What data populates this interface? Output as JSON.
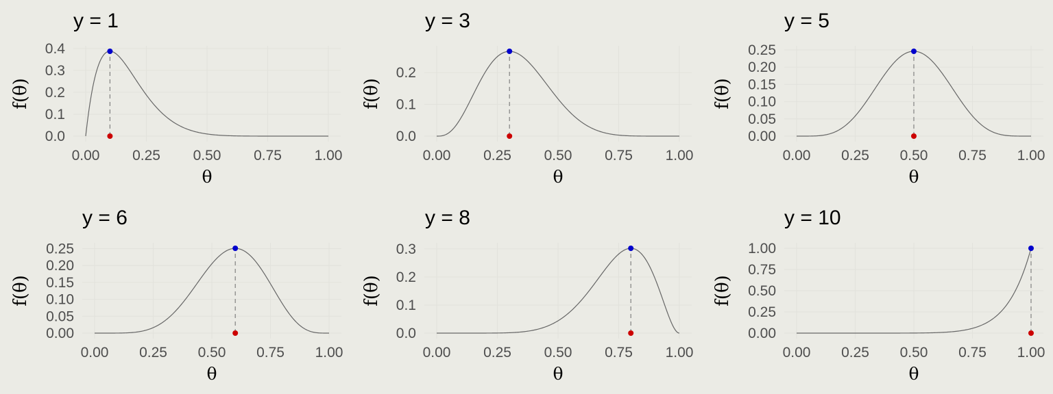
{
  "chart_data": [
    {
      "type": "line",
      "title": "y = 1",
      "xlabel": "θ",
      "ylabel": "f(θ)",
      "xlim": [
        0,
        1
      ],
      "ylim": [
        0,
        0.387
      ],
      "x_ticks": [
        "0.00",
        "0.25",
        "0.50",
        "0.75",
        "1.00"
      ],
      "y_ticks": [
        0,
        0.1,
        0.2,
        0.3,
        0.4
      ],
      "y_tick_labels": [
        "0.0",
        "0.1",
        "0.2",
        "0.3",
        "0.4"
      ],
      "curve": {
        "n": 10,
        "k": 1
      },
      "mode_point": {
        "x": 0.1,
        "y": 0.387
      },
      "base_point": {
        "x": 0.1,
        "y": 0
      },
      "grid": true
    },
    {
      "type": "line",
      "title": "y = 3",
      "xlabel": "θ",
      "ylabel": "f(θ)",
      "xlim": [
        0,
        1
      ],
      "ylim": [
        0,
        0.267
      ],
      "x_ticks": [
        "0.00",
        "0.25",
        "0.50",
        "0.75",
        "1.00"
      ],
      "y_ticks": [
        0,
        0.1,
        0.2
      ],
      "y_tick_labels": [
        "0.0",
        "0.1",
        "0.2"
      ],
      "curve": {
        "n": 10,
        "k": 3
      },
      "mode_point": {
        "x": 0.3,
        "y": 0.267
      },
      "base_point": {
        "x": 0.3,
        "y": 0
      },
      "grid": true
    },
    {
      "type": "line",
      "title": "y = 5",
      "xlabel": "θ",
      "ylabel": "f(θ)",
      "xlim": [
        0,
        1
      ],
      "ylim": [
        0,
        0.246
      ],
      "x_ticks": [
        "0.00",
        "0.25",
        "0.50",
        "0.75",
        "1.00"
      ],
      "y_ticks": [
        0,
        0.05,
        0.1,
        0.15,
        0.2,
        0.25
      ],
      "y_tick_labels": [
        "0.00",
        "0.05",
        "0.10",
        "0.15",
        "0.20",
        "0.25"
      ],
      "curve": {
        "n": 10,
        "k": 5
      },
      "mode_point": {
        "x": 0.5,
        "y": 0.246
      },
      "base_point": {
        "x": 0.5,
        "y": 0
      },
      "grid": true
    },
    {
      "type": "line",
      "title": "y = 6",
      "xlabel": "θ",
      "ylabel": "f(θ)",
      "xlim": [
        0,
        1
      ],
      "ylim": [
        0,
        0.251
      ],
      "x_ticks": [
        "0.00",
        "0.25",
        "0.50",
        "0.75",
        "1.00"
      ],
      "y_ticks": [
        0,
        0.05,
        0.1,
        0.15,
        0.2,
        0.25
      ],
      "y_tick_labels": [
        "0.00",
        "0.05",
        "0.10",
        "0.15",
        "0.20",
        "0.25"
      ],
      "curve": {
        "n": 10,
        "k": 6
      },
      "mode_point": {
        "x": 0.6,
        "y": 0.251
      },
      "base_point": {
        "x": 0.6,
        "y": 0
      },
      "grid": true
    },
    {
      "type": "line",
      "title": "y = 8",
      "xlabel": "θ",
      "ylabel": "f(θ)",
      "xlim": [
        0,
        1
      ],
      "ylim": [
        0,
        0.302
      ],
      "x_ticks": [
        "0.00",
        "0.25",
        "0.50",
        "0.75",
        "1.00"
      ],
      "y_ticks": [
        0,
        0.1,
        0.2,
        0.3
      ],
      "y_tick_labels": [
        "0.0",
        "0.1",
        "0.2",
        "0.3"
      ],
      "curve": {
        "n": 10,
        "k": 8
      },
      "mode_point": {
        "x": 0.8,
        "y": 0.302
      },
      "base_point": {
        "x": 0.8,
        "y": 0
      },
      "grid": true
    },
    {
      "type": "line",
      "title": "y = 10",
      "xlabel": "θ",
      "ylabel": "f(θ)",
      "xlim": [
        0,
        1
      ],
      "ylim": [
        0,
        1
      ],
      "x_ticks": [
        "0.00",
        "0.25",
        "0.50",
        "0.75",
        "1.00"
      ],
      "y_ticks": [
        0,
        0.25,
        0.5,
        0.75,
        1
      ],
      "y_tick_labels": [
        "0.00",
        "0.25",
        "0.50",
        "0.75",
        "1.00"
      ],
      "curve": {
        "n": 10,
        "k": 10
      },
      "mode_point": {
        "x": 1.0,
        "y": 1.0
      },
      "base_point": {
        "x": 1.0,
        "y": 0
      },
      "grid": true
    }
  ],
  "colors": {
    "background": "#ebebe5",
    "grid": "#e2e2dc",
    "curve": "#666666",
    "mode_point": "#0000cc",
    "base_point": "#cc0000",
    "dash": "#808080"
  }
}
